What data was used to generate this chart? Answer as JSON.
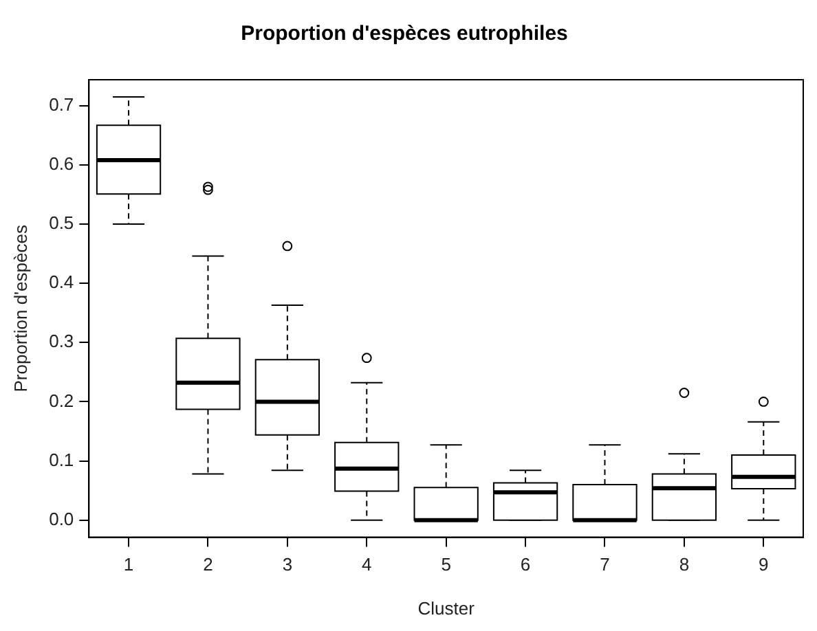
{
  "chart_data": {
    "type": "box",
    "title": "Proportion d'espèces eutrophiles",
    "xlabel": "Cluster",
    "ylabel": "Proportion d'espèces",
    "categories": [
      "1",
      "2",
      "3",
      "4",
      "5",
      "6",
      "7",
      "8",
      "9"
    ],
    "ylim": [
      -0.029,
      0.744
    ],
    "yticks": [
      {
        "value": 0,
        "label": "0.0"
      },
      0.1,
      0.2,
      0.3,
      0.4,
      0.5,
      0.6,
      0.7
    ],
    "grid": false,
    "legend": false,
    "color": "#000000",
    "boxes": [
      {
        "low": 0.5,
        "q1": 0.551,
        "median": 0.608,
        "q3": 0.667,
        "high": 0.715
      },
      {
        "low": 0.078,
        "q1": 0.187,
        "median": 0.232,
        "q3": 0.307,
        "high": 0.446,
        "outliers": [
          0.558,
          0.563
        ]
      },
      {
        "low": 0.084,
        "q1": 0.144,
        "median": 0.2,
        "q3": 0.271,
        "high": 0.363,
        "outliers": [
          0.463
        ]
      },
      {
        "low": 0,
        "q1": 0.049,
        "median": 0.087,
        "q3": 0.131,
        "high": 0.232,
        "outliers": [
          0.274
        ]
      },
      {
        "low": 0,
        "q1": 0,
        "median": 0,
        "q3": 0.055,
        "high": 0.127
      },
      {
        "low": 0,
        "q1": 0,
        "median": 0.047,
        "q3": 0.063,
        "high": 0.084
      },
      {
        "low": 0,
        "q1": 0,
        "median": 0,
        "q3": 0.06,
        "high": 0.127
      },
      {
        "low": 0,
        "q1": 0,
        "median": 0.054,
        "q3": 0.078,
        "high": 0.112,
        "outliers": [
          0.215
        ]
      },
      {
        "low": 0,
        "q1": 0.053,
        "median": 0.073,
        "q3": 0.11,
        "high": 0.166,
        "outliers": [
          0.2
        ]
      }
    ]
  }
}
